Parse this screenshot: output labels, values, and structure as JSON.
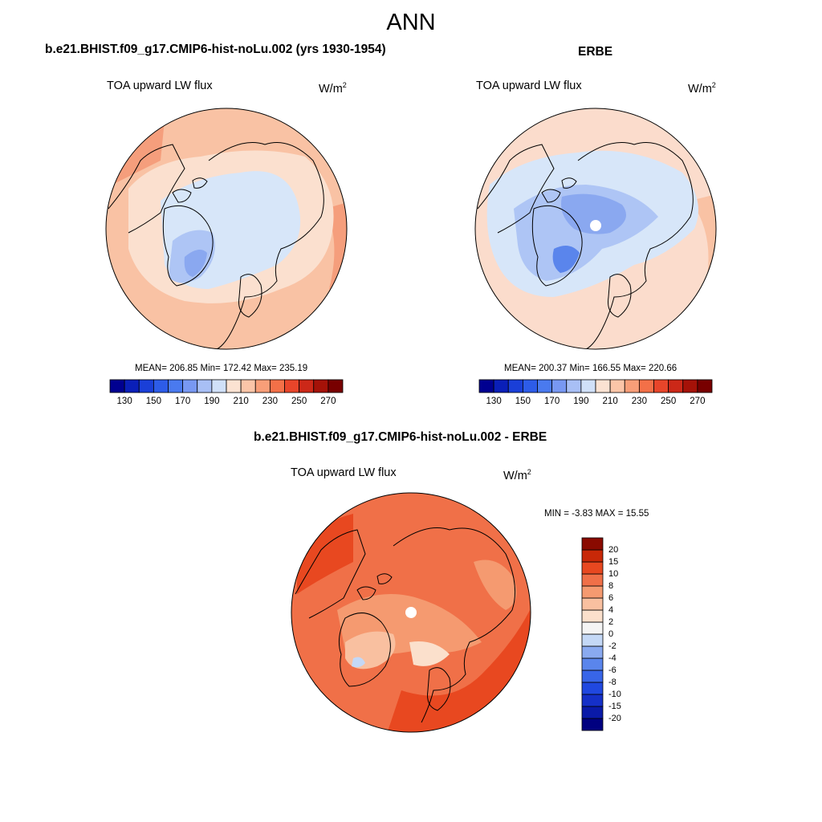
{
  "figure": {
    "title": "ANN"
  },
  "panels": [
    {
      "id": "model",
      "title": "b.e21.BHIST.f09_g17.CMIP6-hist-noLu.002 (yrs 1930-1954)",
      "variable": "TOA upward LW flux",
      "units_base": "W/m",
      "units_exp": "2",
      "stats": "MEAN= 206.85  Min= 172.42  Max= 235.19",
      "mean": 206.85,
      "min": 172.42,
      "max": 235.19,
      "map_projection": "north polar stereographic",
      "pole_missing": false
    },
    {
      "id": "obs",
      "title": "ERBE",
      "variable": "TOA upward LW flux",
      "units_base": "W/m",
      "units_exp": "2",
      "stats": "MEAN= 200.37  Min= 166.55  Max= 220.66",
      "mean": 200.37,
      "min": 166.55,
      "max": 220.66,
      "map_projection": "north polar stereographic",
      "pole_missing": true
    },
    {
      "id": "diff",
      "title": "b.e21.BHIST.f09_g17.CMIP6-hist-noLu.002 - ERBE",
      "variable": "TOA upward LW flux",
      "units_base": "W/m",
      "units_exp": "2",
      "stats": "MIN =  -3.83 MAX =  15.55",
      "min": -3.83,
      "max": 15.55,
      "map_projection": "north polar stereographic",
      "pole_missing": true
    }
  ],
  "colorbar_abs": {
    "orientation": "horizontal",
    "levels": [
      130,
      140,
      150,
      160,
      170,
      180,
      190,
      200,
      210,
      220,
      230,
      240,
      250,
      260,
      270
    ],
    "tick_labels": [
      "130",
      "150",
      "170",
      "190",
      "210",
      "230",
      "250",
      "270"
    ],
    "colors": [
      "#000090",
      "#0a1fb8",
      "#1a3fd8",
      "#2d5ce8",
      "#4a7aef",
      "#7898f2",
      "#a8bff5",
      "#d0e0f8",
      "#fbe2d2",
      "#fbc5a8",
      "#f89e78",
      "#f37048",
      "#e8452a",
      "#cc2818",
      "#a51208",
      "#780000"
    ]
  },
  "colorbar_diff": {
    "orientation": "vertical",
    "levels": [
      -20,
      -15,
      -10,
      -8,
      -6,
      -4,
      -2,
      0,
      2,
      4,
      6,
      8,
      10,
      15,
      20
    ],
    "tick_labels": [
      "20",
      "15",
      "10",
      "8",
      "6",
      "4",
      "2",
      "0",
      "-2",
      "-4",
      "-6",
      "-8",
      "-10",
      "-15",
      "-20"
    ],
    "colors": [
      "#000080",
      "#0a1aa8",
      "#1530c8",
      "#2048e0",
      "#3865e8",
      "#5a85ec",
      "#8aaaf0",
      "#c4d8f6",
      "#f4f4f4",
      "#fbe0cc",
      "#f9c0a0",
      "#f59a70",
      "#f07048",
      "#e84820",
      "#c82808",
      "#8a0a00"
    ]
  },
  "colors": {
    "land_outline": "#000000",
    "frame": "#000000"
  }
}
